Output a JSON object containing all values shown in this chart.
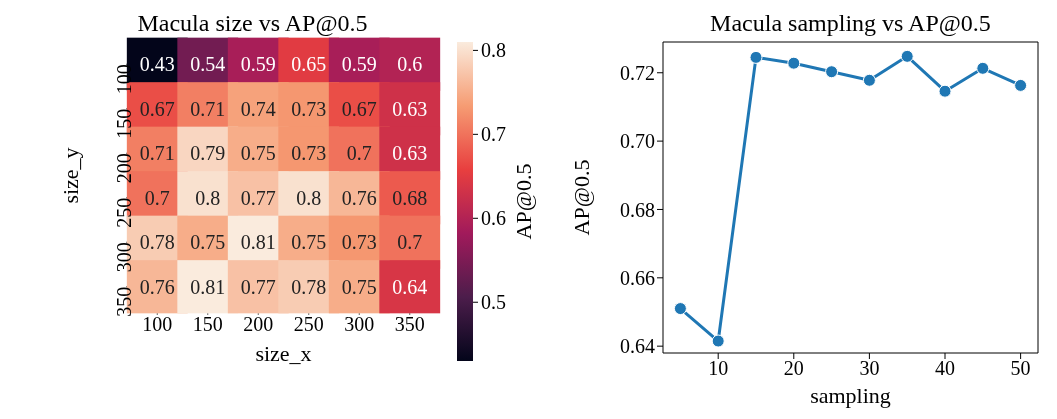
{
  "chart_data": [
    {
      "type": "heatmap",
      "title": "Macula size vs AP@0.5",
      "xlabel": "size_x",
      "ylabel": "size_y",
      "clabel": "AP@0.5",
      "categories": [
        "100",
        "150",
        "200",
        "250",
        "300",
        "350"
      ],
      "y_categories": [
        "100",
        "150",
        "200",
        "250",
        "300",
        "350"
      ],
      "cells": [
        [
          0.43,
          0.54,
          0.59,
          0.65,
          0.59,
          0.6
        ],
        [
          0.67,
          0.71,
          0.74,
          0.73,
          0.67,
          0.63
        ],
        [
          0.71,
          0.79,
          0.75,
          0.73,
          0.7,
          0.63
        ],
        [
          0.7,
          0.8,
          0.77,
          0.8,
          0.76,
          0.68
        ],
        [
          0.78,
          0.75,
          0.81,
          0.75,
          0.73,
          0.7
        ],
        [
          0.76,
          0.81,
          0.77,
          0.78,
          0.75,
          0.64
        ]
      ],
      "clim": [
        0.43,
        0.81
      ],
      "cticks": [
        0.5,
        0.6,
        0.7,
        0.8
      ],
      "data_labels": true
    },
    {
      "type": "line",
      "title": "Macula sampling vs AP@0.5",
      "xlabel": "sampling",
      "ylabel": "AP@0.5",
      "x": [
        5,
        10,
        15,
        20,
        25,
        30,
        35,
        40,
        45,
        50
      ],
      "series": [
        {
          "color": "#1f77b4",
          "values": [
            0.651,
            0.6415,
            0.7245,
            0.7228,
            0.7203,
            0.7178,
            0.7248,
            0.7146,
            0.7213,
            0.7163
          ]
        }
      ],
      "xlim": [
        2.7,
        52.3
      ],
      "ylim": [
        0.638,
        0.729
      ],
      "xticks": [
        10,
        20,
        30,
        40,
        50
      ],
      "yticks": [
        0.64,
        0.66,
        0.68,
        {
          "value": 0.7,
          "label": "0.70"
        },
        0.72
      ],
      "marker": "circle",
      "grid": false
    }
  ]
}
